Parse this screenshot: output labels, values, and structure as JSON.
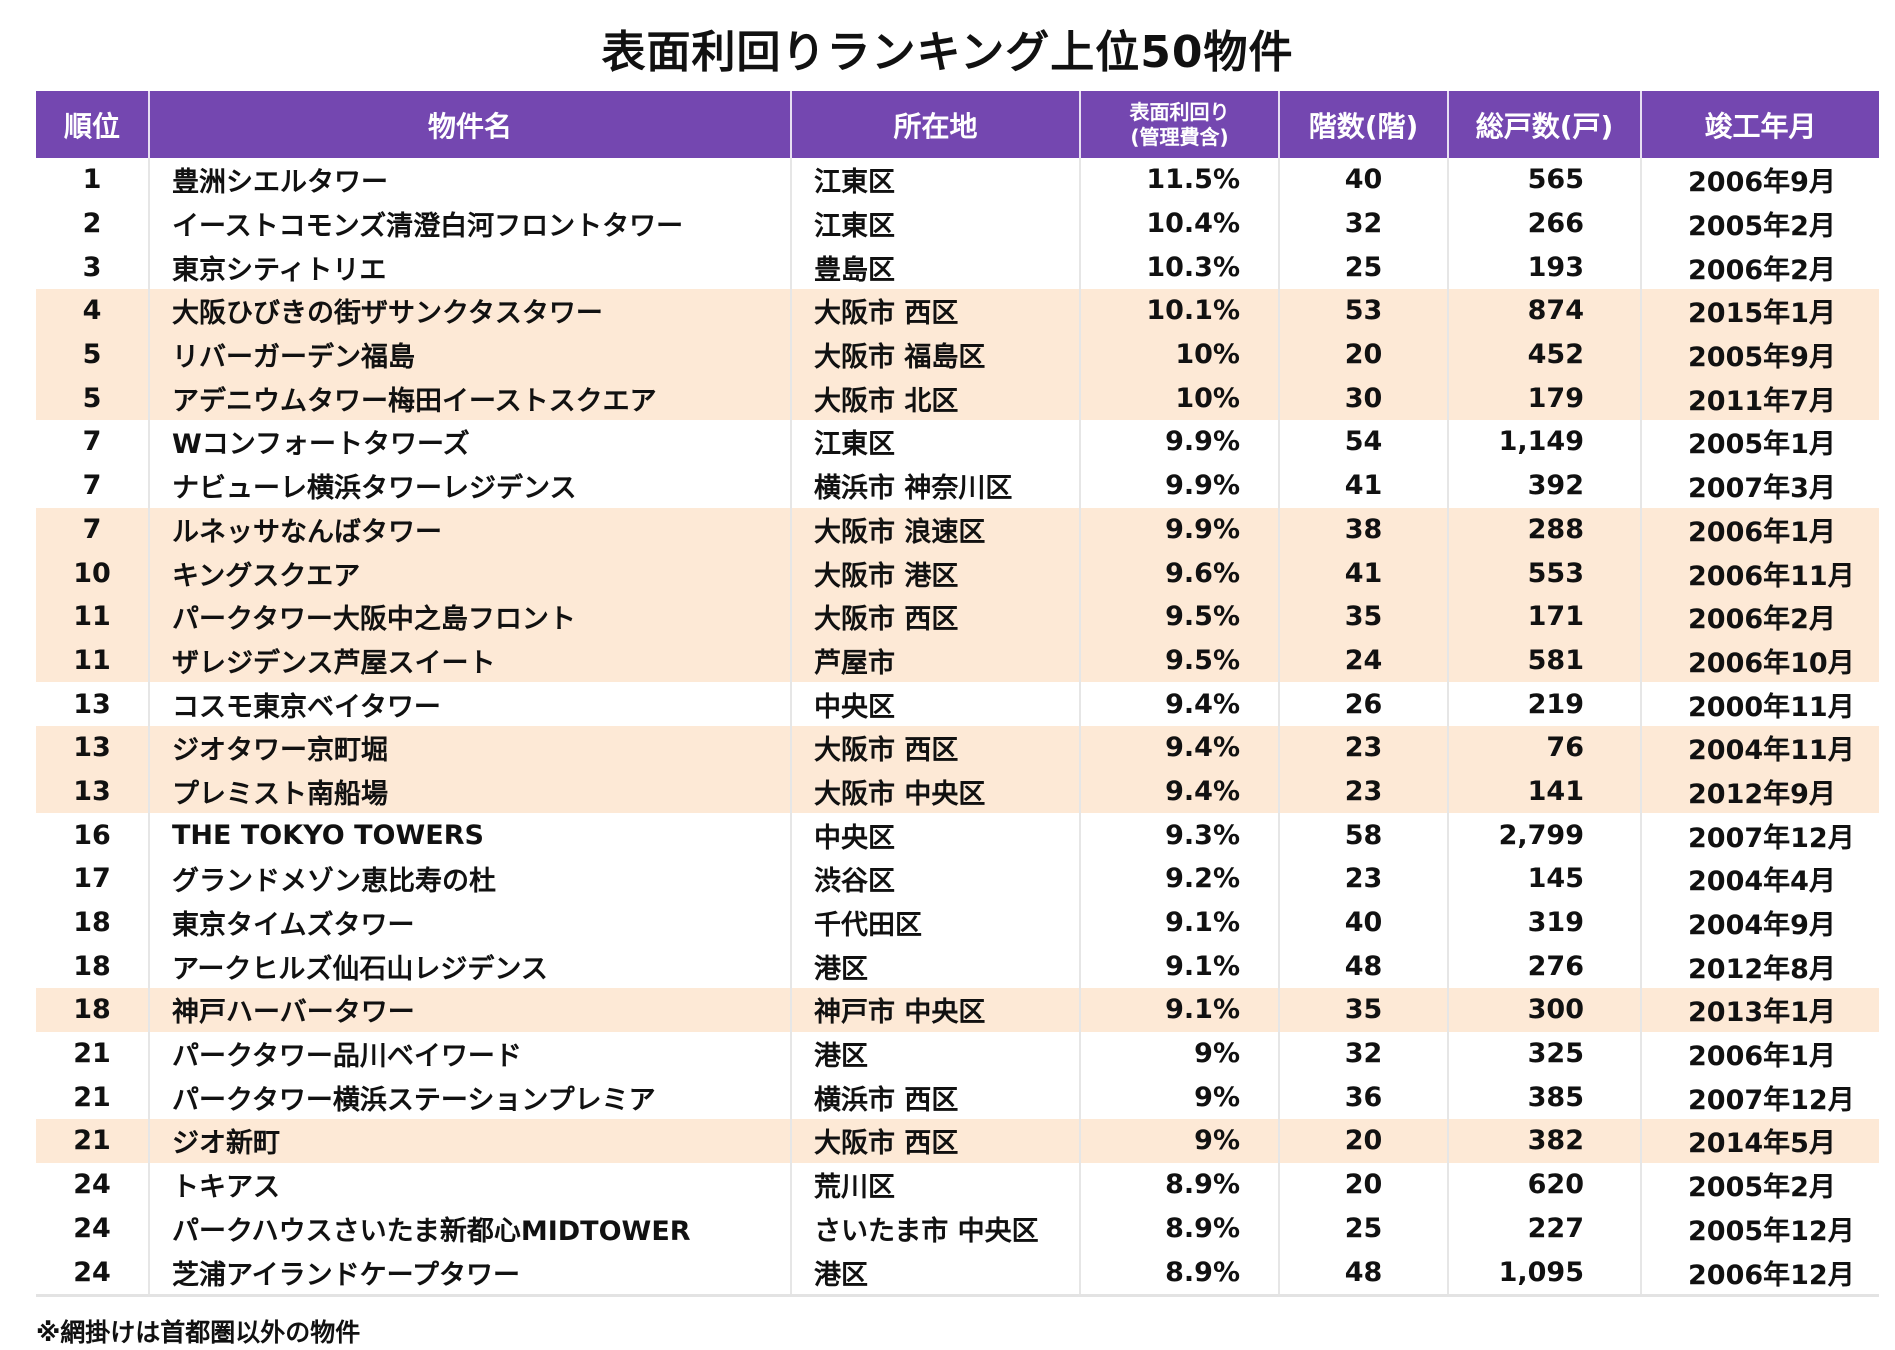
{
  "title": "表面利回りランキング上位50物件",
  "columns": [
    "順位",
    "物件名",
    "所在地",
    "表面利回り",
    "(管理費含)",
    "階数(階)",
    "総戸数(戸)",
    "竣工年月"
  ],
  "colors": {
    "header": "#7447b0",
    "shade": "#fde9d6"
  },
  "rows": [
    {
      "rank": "1",
      "name": "豊洲シエルタワー",
      "location": "江東区",
      "yield": "11.5%",
      "floors": "40",
      "units": "565",
      "completed": "2006年9月",
      "shaded": false
    },
    {
      "rank": "2",
      "name": "イーストコモンズ清澄白河フロントタワー",
      "location": "江東区",
      "yield": "10.4%",
      "floors": "32",
      "units": "266",
      "completed": "2005年2月",
      "shaded": false
    },
    {
      "rank": "3",
      "name": "東京シティトリエ",
      "location": "豊島区",
      "yield": "10.3%",
      "floors": "25",
      "units": "193",
      "completed": "2006年2月",
      "shaded": false
    },
    {
      "rank": "4",
      "name": "大阪ひびきの街ザサンクタスタワー",
      "location": "大阪市 西区",
      "yield": "10.1%",
      "floors": "53",
      "units": "874",
      "completed": "2015年1月",
      "shaded": true
    },
    {
      "rank": "5",
      "name": "リバーガーデン福島",
      "location": "大阪市 福島区",
      "yield": "10%",
      "floors": "20",
      "units": "452",
      "completed": "2005年9月",
      "shaded": true
    },
    {
      "rank": "5",
      "name": "アデニウムタワー梅田イーストスクエア",
      "location": "大阪市 北区",
      "yield": "10%",
      "floors": "30",
      "units": "179",
      "completed": "2011年7月",
      "shaded": true
    },
    {
      "rank": "7",
      "name": "Wコンフォートタワーズ",
      "location": "江東区",
      "yield": "9.9%",
      "floors": "54",
      "units": "1,149",
      "completed": "2005年1月",
      "shaded": false
    },
    {
      "rank": "7",
      "name": "ナビューレ横浜タワーレジデンス",
      "location": "横浜市 神奈川区",
      "yield": "9.9%",
      "floors": "41",
      "units": "392",
      "completed": "2007年3月",
      "shaded": false
    },
    {
      "rank": "7",
      "name": "ルネッサなんばタワー",
      "location": "大阪市 浪速区",
      "yield": "9.9%",
      "floors": "38",
      "units": "288",
      "completed": "2006年1月",
      "shaded": true
    },
    {
      "rank": "10",
      "name": "キングスクエア",
      "location": "大阪市 港区",
      "yield": "9.6%",
      "floors": "41",
      "units": "553",
      "completed": "2006年11月",
      "shaded": true
    },
    {
      "rank": "11",
      "name": "パークタワー大阪中之島フロント",
      "location": "大阪市 西区",
      "yield": "9.5%",
      "floors": "35",
      "units": "171",
      "completed": "2006年2月",
      "shaded": true
    },
    {
      "rank": "11",
      "name": "ザレジデンス芦屋スイート",
      "location": "芦屋市",
      "yield": "9.5%",
      "floors": "24",
      "units": "581",
      "completed": "2006年10月",
      "shaded": true
    },
    {
      "rank": "13",
      "name": "コスモ東京ベイタワー",
      "location": "中央区",
      "yield": "9.4%",
      "floors": "26",
      "units": "219",
      "completed": "2000年11月",
      "shaded": false
    },
    {
      "rank": "13",
      "name": "ジオタワー京町堀",
      "location": "大阪市 西区",
      "yield": "9.4%",
      "floors": "23",
      "units": "76",
      "completed": "2004年11月",
      "shaded": true
    },
    {
      "rank": "13",
      "name": "プレミスト南船場",
      "location": "大阪市 中央区",
      "yield": "9.4%",
      "floors": "23",
      "units": "141",
      "completed": "2012年9月",
      "shaded": true
    },
    {
      "rank": "16",
      "name": "THE TOKYO TOWERS",
      "location": "中央区",
      "yield": "9.3%",
      "floors": "58",
      "units": "2,799",
      "completed": "2007年12月",
      "shaded": false
    },
    {
      "rank": "17",
      "name": "グランドメゾン恵比寿の杜",
      "location": "渋谷区",
      "yield": "9.2%",
      "floors": "23",
      "units": "145",
      "completed": "2004年4月",
      "shaded": false
    },
    {
      "rank": "18",
      "name": "東京タイムズタワー",
      "location": "千代田区",
      "yield": "9.1%",
      "floors": "40",
      "units": "319",
      "completed": "2004年9月",
      "shaded": false
    },
    {
      "rank": "18",
      "name": "アークヒルズ仙石山レジデンス",
      "location": "港区",
      "yield": "9.1%",
      "floors": "48",
      "units": "276",
      "completed": "2012年8月",
      "shaded": false
    },
    {
      "rank": "18",
      "name": "神戸ハーバータワー",
      "location": "神戸市 中央区",
      "yield": "9.1%",
      "floors": "35",
      "units": "300",
      "completed": "2013年1月",
      "shaded": true
    },
    {
      "rank": "21",
      "name": "パークタワー品川ベイワード",
      "location": "港区",
      "yield": "9%",
      "floors": "32",
      "units": "325",
      "completed": "2006年1月",
      "shaded": false
    },
    {
      "rank": "21",
      "name": "パークタワー横浜ステーションプレミア",
      "location": "横浜市 西区",
      "yield": "9%",
      "floors": "36",
      "units": "385",
      "completed": "2007年12月",
      "shaded": false
    },
    {
      "rank": "21",
      "name": "ジオ新町",
      "location": "大阪市 西区",
      "yield": "9%",
      "floors": "20",
      "units": "382",
      "completed": "2014年5月",
      "shaded": true
    },
    {
      "rank": "24",
      "name": "トキアス",
      "location": "荒川区",
      "yield": "8.9%",
      "floors": "20",
      "units": "620",
      "completed": "2005年2月",
      "shaded": false
    },
    {
      "rank": "24",
      "name": "パークハウスさいたま新都心MIDTOWER",
      "location": "さいたま市 中央区",
      "yield": "8.9%",
      "floors": "25",
      "units": "227",
      "completed": "2005年12月",
      "shaded": false
    },
    {
      "rank": "24",
      "name": "芝浦アイランドケープタワー",
      "location": "港区",
      "yield": "8.9%",
      "floors": "48",
      "units": "1,095",
      "completed": "2006年12月",
      "shaded": false
    }
  ],
  "footnote": "※網掛けは首都圏以外の物件"
}
